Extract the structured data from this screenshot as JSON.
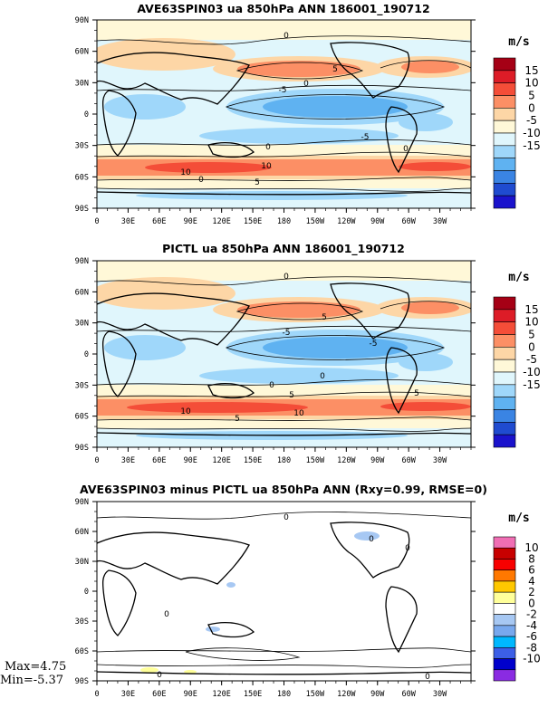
{
  "panels": [
    {
      "title": "AVE63SPIN03 ua 850hPa ANN 186001_190712",
      "colorbar_unit": "m/s",
      "colorbar_labels": [
        "15",
        "10",
        "5",
        "0",
        "-5",
        "-10",
        "-15"
      ],
      "contour_labels": [
        "0",
        "5",
        "-5",
        "0",
        "-5",
        "0",
        "0",
        "10",
        "10",
        "5",
        "0"
      ]
    },
    {
      "title": "PICTL ua 850hPa ANN 186001_190712",
      "colorbar_unit": "m/s",
      "colorbar_labels": [
        "15",
        "10",
        "5",
        "0",
        "-5",
        "-10",
        "-15"
      ],
      "contour_labels": [
        "0",
        "5",
        "-5",
        "-5",
        "0",
        "0",
        "5",
        "10",
        "5",
        "10",
        "5"
      ]
    },
    {
      "title": "AVE63SPIN03 minus PICTL ua 850hPa ANN (Rxy=0.99, RMSE=0)",
      "colorbar_unit": "m/s",
      "colorbar_labels": [
        "10",
        "8",
        "6",
        "4",
        "2",
        "0",
        "-2",
        "-4",
        "-6",
        "-8",
        "-10"
      ],
      "contour_labels": [
        "0",
        "0",
        "0",
        "0",
        "0",
        "0"
      ]
    }
  ],
  "lat_labels": [
    "90N",
    "60N",
    "30N",
    "0",
    "30S",
    "60S",
    "90S"
  ],
  "lon_labels": [
    "0",
    "30E",
    "60E",
    "90E",
    "120E",
    "150E",
    "180",
    "150W",
    "120W",
    "90W",
    "60W",
    "30W"
  ],
  "stats": {
    "max": "Max=4.75",
    "min": "Min=-5.37"
  },
  "colors": {
    "wind_scale": [
      "#a50015",
      "#dd1c27",
      "#f44d38",
      "#fc8f65",
      "#fdd6a6",
      "#fff8d8",
      "#e0f6fc",
      "#9fd7fa",
      "#5fb2f1",
      "#3a84e3",
      "#1f4bd0",
      "#1a12cc"
    ],
    "diff_scale": [
      "#f06eb4",
      "#c80000",
      "#f80000",
      "#ff7800",
      "#ffc800",
      "#ffff9a",
      "#ffffff",
      "#a7c8f3",
      "#78a8ee",
      "#00b8ff",
      "#3c5fe7",
      "#0000cc",
      "#8a2be2"
    ]
  }
}
